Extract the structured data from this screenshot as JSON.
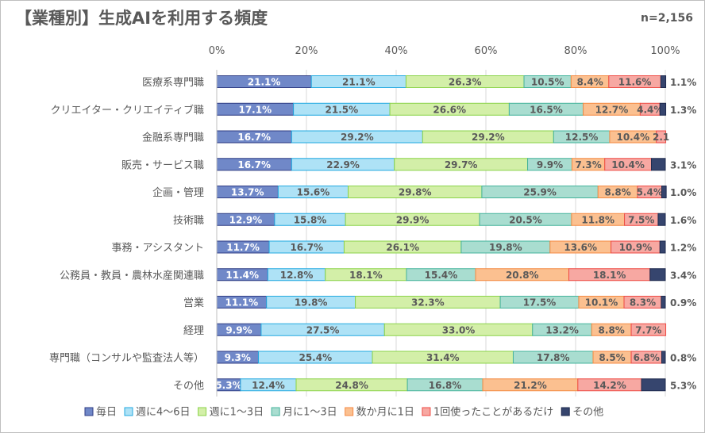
{
  "chart_data": {
    "type": "stacked-bar-horizontal-100",
    "title": "【業種別】生成AIを利用する頻度",
    "note": "n=2,156",
    "x_ticks": [
      "0%",
      "20%",
      "40%",
      "60%",
      "80%",
      "100%"
    ],
    "xlim": [
      0,
      100
    ],
    "legend_position": "bottom",
    "series": [
      {
        "name": "毎日",
        "color": "#7088c8",
        "border": "#2f3d84"
      },
      {
        "name": "週に4〜6日",
        "color": "#aee2f6",
        "border": "#23a9e0"
      },
      {
        "name": "週に1〜3日",
        "color": "#d3efa8",
        "border": "#8bd34a"
      },
      {
        "name": "月に1〜3日",
        "color": "#a9ddd0",
        "border": "#44b39b"
      },
      {
        "name": "数か月に1日",
        "color": "#fbc090",
        "border": "#f48a43"
      },
      {
        "name": "1回使ったことがあるだけ",
        "color": "#f7a8a2",
        "border": "#ee4a44"
      },
      {
        "name": "その他",
        "color": "#36456e",
        "border": "#1e2a4e"
      }
    ],
    "categories": [
      {
        "label": "医療系専門職",
        "values": [
          21.1,
          21.1,
          26.3,
          10.5,
          8.4,
          11.6,
          1.1
        ],
        "labels": [
          "21.1%",
          "21.1%",
          "26.3%",
          "10.5%",
          "8.4%",
          "11.6%",
          "1.1%"
        ]
      },
      {
        "label": "クリエイター・クリエイティブ職",
        "values": [
          17.1,
          21.5,
          26.6,
          16.5,
          12.7,
          4.4,
          1.3
        ],
        "labels": [
          "17.1%",
          "21.5%",
          "26.6%",
          "16.5%",
          "12.7%",
          "4.4%",
          "1.3%"
        ]
      },
      {
        "label": "金融系専門職",
        "values": [
          16.7,
          29.2,
          29.2,
          12.5,
          10.4,
          2.1,
          0
        ],
        "labels": [
          "16.7%",
          "29.2%",
          "29.2%",
          "12.5%",
          "10.4%",
          "2.1",
          ""
        ]
      },
      {
        "label": "販売・サービス職",
        "values": [
          16.7,
          22.9,
          29.7,
          9.9,
          7.3,
          10.4,
          3.1
        ],
        "labels": [
          "16.7%",
          "22.9%",
          "29.7%",
          "9.9%",
          "7.3%",
          "10.4%",
          "3.1%"
        ]
      },
      {
        "label": "企画・管理",
        "values": [
          13.7,
          15.6,
          29.8,
          25.9,
          8.8,
          5.4,
          1.0
        ],
        "labels": [
          "13.7%",
          "15.6%",
          "29.8%",
          "25.9%",
          "8.8%",
          "5.4%",
          "1.0%"
        ]
      },
      {
        "label": "技術職",
        "values": [
          12.9,
          15.8,
          29.9,
          20.5,
          11.8,
          7.5,
          1.6
        ],
        "labels": [
          "12.9%",
          "15.8%",
          "29.9%",
          "20.5%",
          "11.8%",
          "7.5%",
          "1.6%"
        ]
      },
      {
        "label": "事務・アシスタント",
        "values": [
          11.7,
          16.7,
          26.1,
          19.8,
          13.6,
          10.9,
          1.2
        ],
        "labels": [
          "11.7%",
          "16.7%",
          "26.1%",
          "19.8%",
          "13.6%",
          "10.9%",
          "1.2%"
        ]
      },
      {
        "label": "公務員・教員・農林水産関連職",
        "values": [
          11.4,
          12.8,
          18.1,
          15.4,
          20.8,
          18.1,
          3.4
        ],
        "labels": [
          "11.4%",
          "12.8%",
          "18.1%",
          "15.4%",
          "20.8%",
          "18.1%",
          "3.4%"
        ]
      },
      {
        "label": "営業",
        "values": [
          11.1,
          19.8,
          32.3,
          17.5,
          10.1,
          8.3,
          0.9
        ],
        "labels": [
          "11.1%",
          "19.8%",
          "32.3%",
          "17.5%",
          "10.1%",
          "8.3%",
          "0.9%"
        ]
      },
      {
        "label": "経理",
        "values": [
          9.9,
          27.5,
          33.0,
          13.2,
          8.8,
          7.7,
          0
        ],
        "labels": [
          "9.9%",
          "27.5%",
          "33.0%",
          "13.2%",
          "8.8%",
          "7.7%",
          ""
        ]
      },
      {
        "label": "専門職（コンサルや監査法人等）",
        "values": [
          9.3,
          25.4,
          31.4,
          17.8,
          8.5,
          6.8,
          0.8
        ],
        "labels": [
          "9.3%",
          "25.4%",
          "31.4%",
          "17.8%",
          "8.5%",
          "6.8%",
          "0.8%"
        ]
      },
      {
        "label": "その他",
        "values": [
          5.3,
          12.4,
          24.8,
          16.8,
          21.2,
          14.2,
          5.3
        ],
        "labels": [
          "5.3%",
          "12.4%",
          "24.8%",
          "16.8%",
          "21.2%",
          "14.2%",
          "5.3%"
        ]
      }
    ]
  }
}
